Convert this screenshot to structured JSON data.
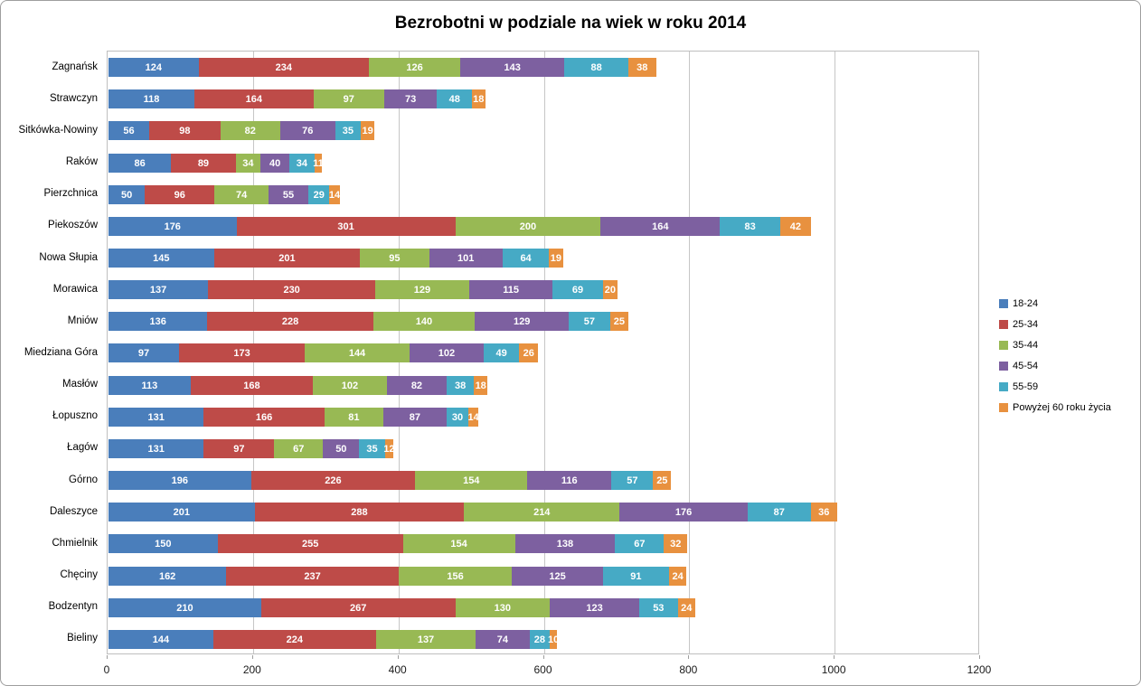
{
  "chart_data": {
    "type": "bar",
    "orientation": "horizontal",
    "stacked": true,
    "title": "Bezrobotni w podziale na wiek w roku 2014",
    "categories": [
      "Zagnańsk",
      "Strawczyn",
      "Sitkówka-Nowiny",
      "Raków",
      "Pierzchnica",
      "Piekoszów",
      "Nowa Słupia",
      "Morawica",
      "Mniów",
      "Miedziana Góra",
      "Masłów",
      "Łopuszno",
      "Łagów",
      "Górno",
      "Daleszyce",
      "Chmielnik",
      "Chęciny",
      "Bodzentyn",
      "Bieliny"
    ],
    "series": [
      {
        "name": "18-24",
        "color": "#4A7EBB",
        "values": [
          124,
          118,
          56,
          86,
          50,
          176,
          145,
          137,
          136,
          97,
          113,
          131,
          131,
          196,
          201,
          150,
          162,
          210,
          144
        ]
      },
      {
        "name": "25-34",
        "color": "#BE4B48",
        "values": [
          234,
          164,
          98,
          89,
          96,
          301,
          201,
          230,
          228,
          173,
          168,
          166,
          97,
          226,
          288,
          255,
          237,
          267,
          224
        ]
      },
      {
        "name": "35-44",
        "color": "#98B954",
        "values": [
          126,
          97,
          82,
          34,
          74,
          200,
          95,
          129,
          140,
          144,
          102,
          81,
          67,
          154,
          214,
          154,
          156,
          130,
          137
        ]
      },
      {
        "name": "45-54",
        "color": "#7D60A0",
        "values": [
          143,
          73,
          76,
          40,
          55,
          164,
          101,
          115,
          129,
          102,
          82,
          87,
          50,
          116,
          176,
          138,
          125,
          123,
          74
        ]
      },
      {
        "name": "55-59",
        "color": "#46AAC5",
        "values": [
          88,
          48,
          35,
          34,
          29,
          83,
          64,
          69,
          57,
          49,
          38,
          30,
          35,
          57,
          87,
          67,
          91,
          53,
          28
        ]
      },
      {
        "name": "Powyżej 60 roku życia",
        "color": "#E8913F",
        "values": [
          38,
          18,
          19,
          11,
          14,
          42,
          19,
          20,
          25,
          26,
          18,
          14,
          12,
          25,
          36,
          32,
          24,
          24,
          10
        ]
      }
    ],
    "xlim": [
      0,
      1200
    ],
    "xticks": [
      "0",
      "200",
      "400",
      "600",
      "800",
      "1000",
      "1200"
    ],
    "grid": "vertical",
    "legend_position": "right",
    "value_label_color": "#FFFFFF",
    "background": "#FFFFFF"
  }
}
